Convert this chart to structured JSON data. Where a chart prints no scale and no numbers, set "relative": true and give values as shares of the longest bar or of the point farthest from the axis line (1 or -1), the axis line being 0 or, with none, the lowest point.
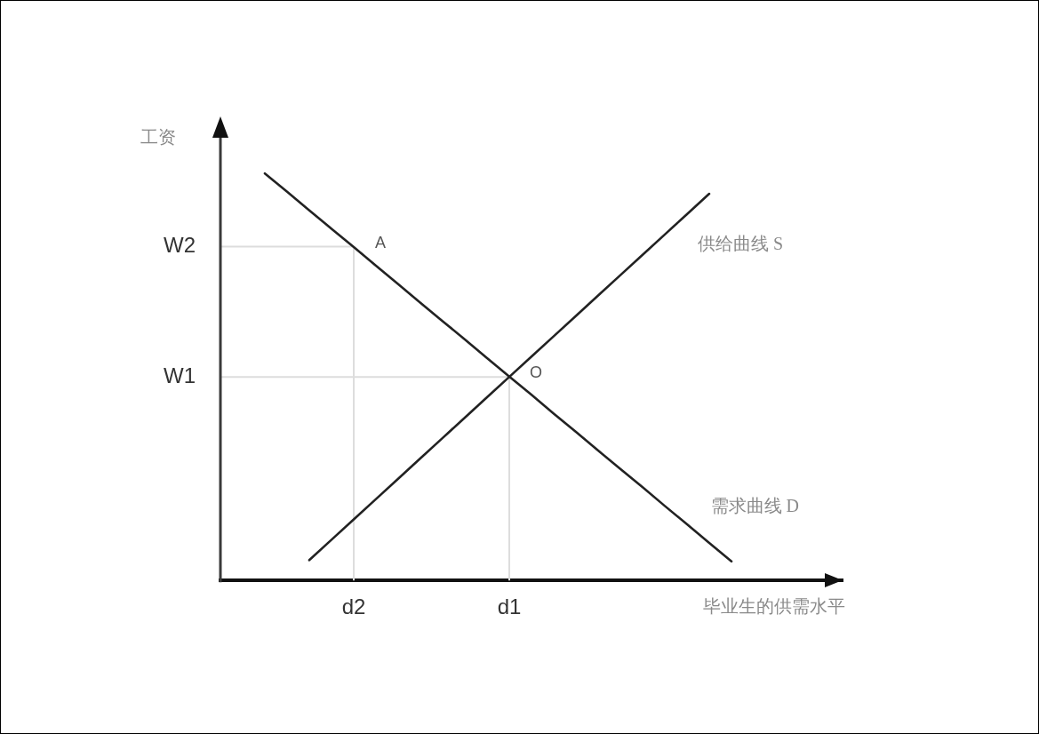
{
  "chart_data": {
    "type": "line",
    "relative": true,
    "xlabel": "毕业生的供需水平",
    "ylabel": "工资",
    "categories": [
      null,
      null,
      null,
      null,
      null,
      null,
      "d2",
      null,
      null,
      null,
      null,
      null,
      null,
      "d1",
      null,
      null,
      null,
      null,
      null,
      null,
      null,
      null,
      null,
      null,
      null,
      null,
      null,
      null,
      null
    ],
    "series": [
      {
        "name": "供给曲线 S",
        "color": "#222222",
        "values": [
          null,
          null,
          null,
          null,
          0.05,
          0.1,
          0.15,
          0.2,
          0.25,
          0.3,
          0.35,
          0.4,
          0.45,
          0.5,
          0.55,
          0.6,
          0.65,
          0.7,
          0.75,
          0.8,
          0.85,
          0.9,
          0.95,
          null,
          null,
          null,
          null,
          null,
          null
        ]
      },
      {
        "name": "需求曲线 D",
        "color": "#222222",
        "values": [
          null,
          null,
          1,
          0.955,
          0.909,
          0.864,
          0.819,
          0.773,
          0.728,
          0.682,
          0.637,
          0.592,
          0.546,
          0.501,
          0.456,
          0.41,
          0.365,
          0.319,
          0.274,
          0.229,
          0.183,
          0.138,
          0.092,
          0.047,
          null,
          null,
          null,
          null,
          null
        ]
      }
    ],
    "ref_lines": [
      {
        "axis": "y",
        "value": 0.82,
        "label": "W2",
        "color": "#dddddd"
      },
      {
        "axis": "y",
        "value": 0.5,
        "label": "W1",
        "color": "#dddddd"
      },
      {
        "axis": "x",
        "value": "d2",
        "color": "#dddddd"
      },
      {
        "axis": "x",
        "value": "d1",
        "color": "#dddddd"
      }
    ],
    "annotations": [
      {
        "text": "A",
        "x": "d2",
        "y": 0.82
      },
      {
        "text": "O",
        "x": "d1",
        "y": 0.5
      }
    ]
  }
}
